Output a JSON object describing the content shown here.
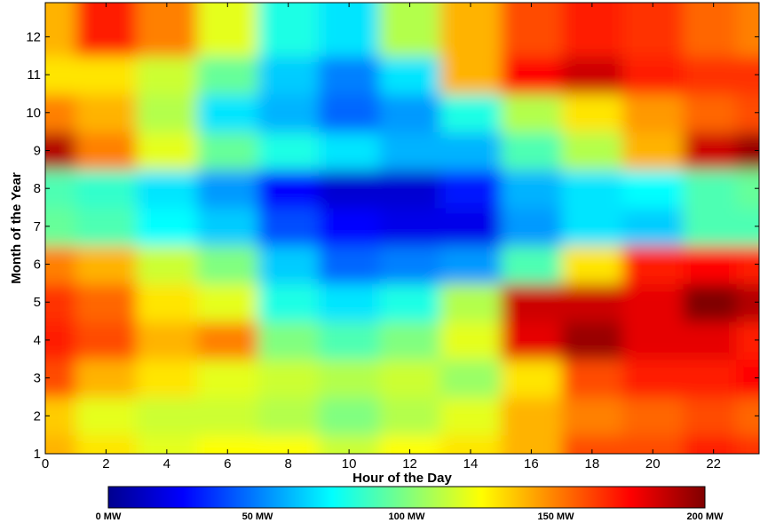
{
  "chart_data": {
    "type": "heatmap",
    "xlabel": "Hour of the Day",
    "ylabel": "Month of the Year",
    "x_ticks": [
      0,
      2,
      4,
      6,
      8,
      10,
      12,
      14,
      16,
      18,
      20,
      22
    ],
    "y_ticks": [
      1,
      2,
      3,
      4,
      5,
      6,
      7,
      8,
      9,
      10,
      11,
      12
    ],
    "xlim": [
      0,
      23.5
    ],
    "ylim": [
      1,
      12.9
    ],
    "x": [
      0,
      2,
      4,
      6,
      8,
      10,
      12,
      14,
      16,
      18,
      20,
      22,
      23.5
    ],
    "y": [
      1,
      2,
      3,
      4,
      5,
      6,
      7,
      8,
      9,
      10,
      11,
      12
    ],
    "z": [
      [
        140,
        130,
        120,
        125,
        125,
        115,
        125,
        130,
        140,
        160,
        160,
        170,
        165
      ],
      [
        135,
        120,
        115,
        115,
        110,
        100,
        110,
        120,
        140,
        150,
        155,
        160,
        155
      ],
      [
        160,
        140,
        130,
        120,
        115,
        110,
        115,
        105,
        130,
        160,
        170,
        170,
        175
      ],
      [
        170,
        160,
        140,
        150,
        100,
        90,
        100,
        120,
        180,
        195,
        180,
        180,
        170
      ],
      [
        165,
        155,
        130,
        120,
        80,
        70,
        80,
        110,
        185,
        185,
        180,
        200,
        190
      ],
      [
        150,
        140,
        115,
        100,
        65,
        45,
        50,
        55,
        90,
        130,
        170,
        175,
        170
      ],
      [
        95,
        90,
        75,
        65,
        40,
        25,
        20,
        20,
        55,
        70,
        65,
        90,
        90
      ],
      [
        90,
        85,
        70,
        55,
        25,
        15,
        15,
        30,
        60,
        70,
        75,
        90,
        95
      ],
      [
        190,
        150,
        120,
        95,
        80,
        70,
        60,
        60,
        90,
        110,
        140,
        185,
        195
      ],
      [
        150,
        140,
        110,
        70,
        60,
        45,
        55,
        80,
        110,
        130,
        145,
        155,
        160
      ],
      [
        130,
        130,
        115,
        95,
        65,
        50,
        70,
        140,
        175,
        185,
        170,
        165,
        165
      ],
      [
        140,
        170,
        150,
        120,
        80,
        70,
        110,
        140,
        160,
        170,
        165,
        155,
        150
      ]
    ],
    "colorbar": {
      "labels": [
        "0 MW",
        "50 MW",
        "100 MW",
        "150 MW",
        "200 MW"
      ],
      "values": [
        0,
        50,
        100,
        150,
        200
      ],
      "range": [
        0,
        200
      ],
      "colormap": "jet"
    }
  }
}
